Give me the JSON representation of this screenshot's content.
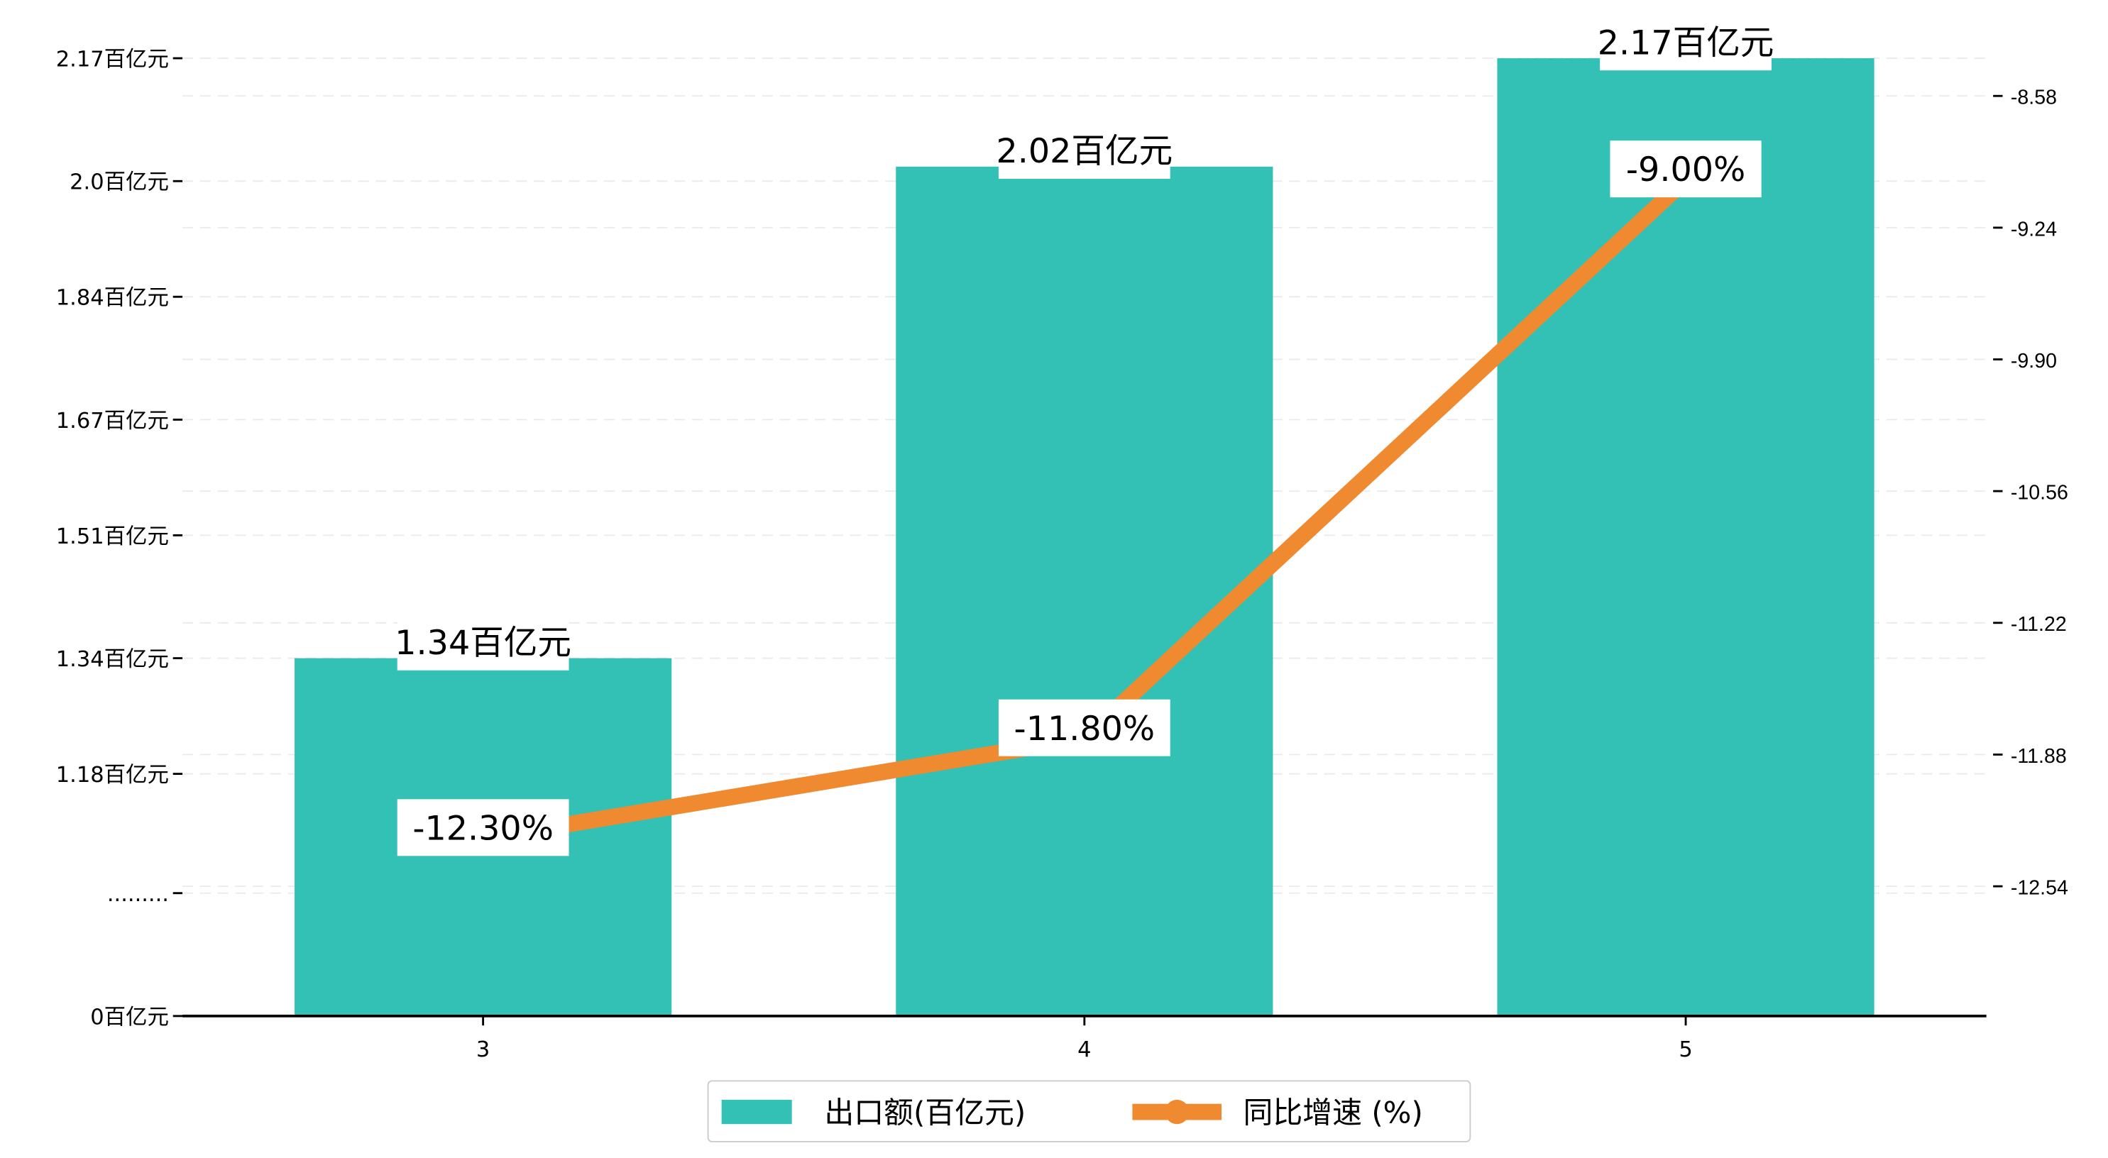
{
  "chart_data": {
    "type": "bar",
    "categories": [
      "3",
      "4",
      "5"
    ],
    "series": [
      {
        "name": "出口额(百亿元)",
        "type": "bar",
        "axis": "left",
        "color": "#32c1b4",
        "values": [
          1.34,
          2.02,
          2.17
        ],
        "labels": [
          "1.34百亿元",
          "2.02百亿元",
          "2.17百亿元"
        ]
      },
      {
        "name": "同比增速 (%)",
        "type": "line",
        "axis": "right",
        "color": "#f08a30",
        "values": [
          -12.3,
          -11.8,
          -9.0
        ],
        "labels": [
          "-12.30%",
          "-11.80%",
          "-9.00%"
        ]
      }
    ],
    "left_axis": {
      "ylim": [
        0.845,
        2.17
      ],
      "ticks": [
        {
          "value": 2.17,
          "label": "2.17百亿元"
        },
        {
          "value": 2.0,
          "label": "2.0百亿元"
        },
        {
          "value": 1.84,
          "label": "1.84百亿元"
        },
        {
          "value": 1.67,
          "label": "1.67百亿元"
        },
        {
          "value": 1.51,
          "label": "1.51百亿元"
        },
        {
          "value": 1.34,
          "label": "1.34百亿元"
        },
        {
          "value": 1.18,
          "label": "1.18百亿元"
        },
        {
          "value": 1.015,
          "label": "........."
        },
        {
          "value": 0.845,
          "label": "0百亿元"
        }
      ]
    },
    "right_axis": {
      "ylim": [
        -13.19,
        -8.1
      ],
      "ticks": [
        -8.58,
        -9.24,
        -9.9,
        -10.56,
        -11.22,
        -11.88,
        -12.54
      ],
      "tick_labels": [
        "-8.58",
        "-9.24",
        "-9.90",
        "-10.56",
        "-11.22",
        "-11.88",
        "-12.54"
      ]
    },
    "grid": true,
    "legend": {
      "placement": "bottom-center",
      "entries": [
        "出口额(百亿元)",
        "同比增速 (%)"
      ]
    },
    "title": "",
    "xlabel": "",
    "ylabel": ""
  }
}
